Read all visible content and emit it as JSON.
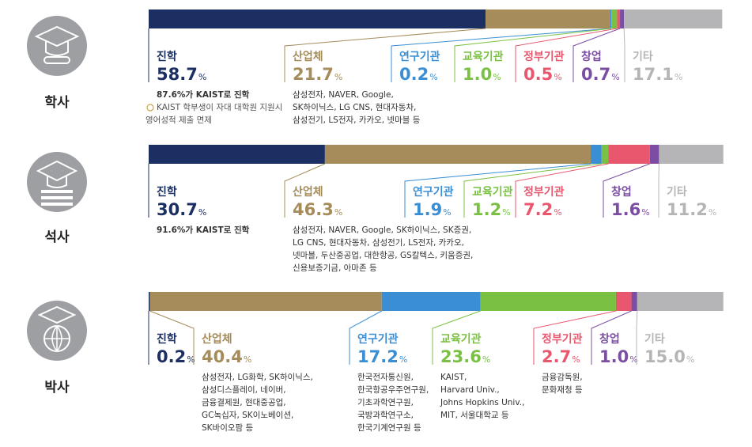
{
  "chart_data": [
    {
      "type": "bar",
      "stacked": true,
      "orientation": "horizontal",
      "title": "학사",
      "unit": "%",
      "xlim": [
        0,
        100
      ],
      "series": [
        {
          "name": "진학",
          "color": "#1b2f63",
          "values": [
            58.7
          ],
          "notes": [
            "87.6%가 KAIST로 진학"
          ],
          "tips": [
            "KAIST 학부생이 자대 대학원 지원시",
            "영어성적 제출 면제"
          ]
        },
        {
          "name": "산업체",
          "color": "#a58c5a",
          "values": [
            21.7
          ],
          "notes": [
            "삼성전자, NAVER, Google,",
            "SK하이닉스, LG CNS, 현대자동차,",
            "삼성전기, LS전자, 카카오, 넷마블 등"
          ]
        },
        {
          "name": "연구기관",
          "color": "#3a8fd4",
          "values": [
            0.2
          ]
        },
        {
          "name": "교육기관",
          "color": "#7ac143",
          "values": [
            1.0
          ],
          "value_labels": [
            "1.0"
          ]
        },
        {
          "name": "정부기관",
          "color": "#e8576e",
          "values": [
            0.5
          ]
        },
        {
          "name": "창업",
          "color": "#7b4ea3",
          "values": [
            0.7
          ]
        },
        {
          "name": "기타",
          "color": "#b5b5b8",
          "values": [
            17.1
          ]
        }
      ]
    },
    {
      "type": "bar",
      "stacked": true,
      "orientation": "horizontal",
      "title": "석사",
      "unit": "%",
      "xlim": [
        0,
        100
      ],
      "series": [
        {
          "name": "진학",
          "color": "#1b2f63",
          "values": [
            30.7
          ],
          "notes": [
            "91.6%가 KAIST로 진학"
          ]
        },
        {
          "name": "산업체",
          "color": "#a58c5a",
          "values": [
            46.3
          ],
          "notes": [
            "삼성전자, NAVER, Google, SK하이닉스, SK증권,",
            "LG CNS, 현대자동차, 삼성전기, LS전자, 카카오,",
            "넷마블, 두산중공업, 대한항공, GS칼텍스, 키움증권,",
            "신용보증기금, 아마존 등"
          ]
        },
        {
          "name": "연구기관",
          "color": "#3a8fd4",
          "values": [
            1.9
          ]
        },
        {
          "name": "교육기관",
          "color": "#7ac143",
          "values": [
            1.2
          ]
        },
        {
          "name": "정부기관",
          "color": "#e8576e",
          "values": [
            7.2
          ]
        },
        {
          "name": "창업",
          "color": "#7b4ea3",
          "values": [
            1.6
          ]
        },
        {
          "name": "기타",
          "color": "#b5b5b8",
          "values": [
            11.2
          ]
        }
      ]
    },
    {
      "type": "bar",
      "stacked": true,
      "orientation": "horizontal",
      "title": "박사",
      "unit": "%",
      "xlim": [
        0,
        100
      ],
      "series": [
        {
          "name": "진학",
          "color": "#1b2f63",
          "values": [
            0.2
          ]
        },
        {
          "name": "산업체",
          "color": "#a58c5a",
          "values": [
            40.4
          ],
          "notes": [
            "삼성전자, LG화학, SK하이닉스,",
            "삼성디스플레이, 네이버,",
            "금융결제원, 현대중공업,",
            "GC녹십자, SK이노베이션,",
            "SK바이오팜 등"
          ]
        },
        {
          "name": "연구기관",
          "color": "#3a8fd4",
          "values": [
            17.2
          ],
          "notes": [
            "한국전자통신원,",
            "한국항공우주연구원,",
            "기초과학연구원,",
            "국방과학연구소,",
            "한국기계연구원 등"
          ]
        },
        {
          "name": "교육기관",
          "color": "#7ac143",
          "values": [
            23.6
          ],
          "notes": [
            "KAIST,",
            "Harvard Univ.,",
            "Johns Hopkins Univ.,",
            "MIT, 서울대학교 등"
          ]
        },
        {
          "name": "정부기관",
          "color": "#e8576e",
          "values": [
            2.7
          ],
          "notes": [
            "금융감독원,",
            "문화재청 등"
          ]
        },
        {
          "name": "창업",
          "color": "#7b4ea3",
          "values": [
            1.0
          ],
          "value_labels": [
            "1.0"
          ]
        },
        {
          "name": "기타",
          "color": "#b5b5b8",
          "values": [
            15.0
          ],
          "value_labels": [
            "15.0"
          ]
        }
      ]
    }
  ]
}
